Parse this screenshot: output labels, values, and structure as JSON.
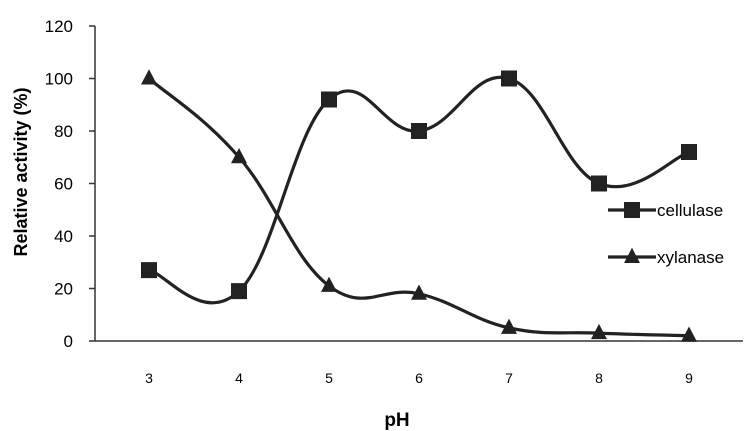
{
  "chart_data": {
    "type": "line",
    "title": "",
    "xlabel": "pH",
    "ylabel": "Relative activity (%)",
    "x": [
      3,
      4,
      5,
      6,
      7,
      8,
      9
    ],
    "xlim": [
      2.4,
      9.6
    ],
    "ylim": [
      0,
      120
    ],
    "yticks": [
      0,
      20,
      40,
      60,
      80,
      100,
      120
    ],
    "xticks": [
      "3",
      "4",
      "5",
      "6",
      "7",
      "8",
      "9"
    ],
    "grid": false,
    "legend_position": "right",
    "series": [
      {
        "name": "cellulase",
        "marker": "square",
        "values": [
          27,
          19,
          92,
          80,
          100,
          60,
          72
        ]
      },
      {
        "name": "xylanase",
        "marker": "triangle",
        "values": [
          100,
          70,
          21,
          18,
          5,
          3,
          2
        ]
      }
    ],
    "colors": {
      "line": "#222222",
      "axis": "#333333",
      "text": "#000000"
    }
  }
}
